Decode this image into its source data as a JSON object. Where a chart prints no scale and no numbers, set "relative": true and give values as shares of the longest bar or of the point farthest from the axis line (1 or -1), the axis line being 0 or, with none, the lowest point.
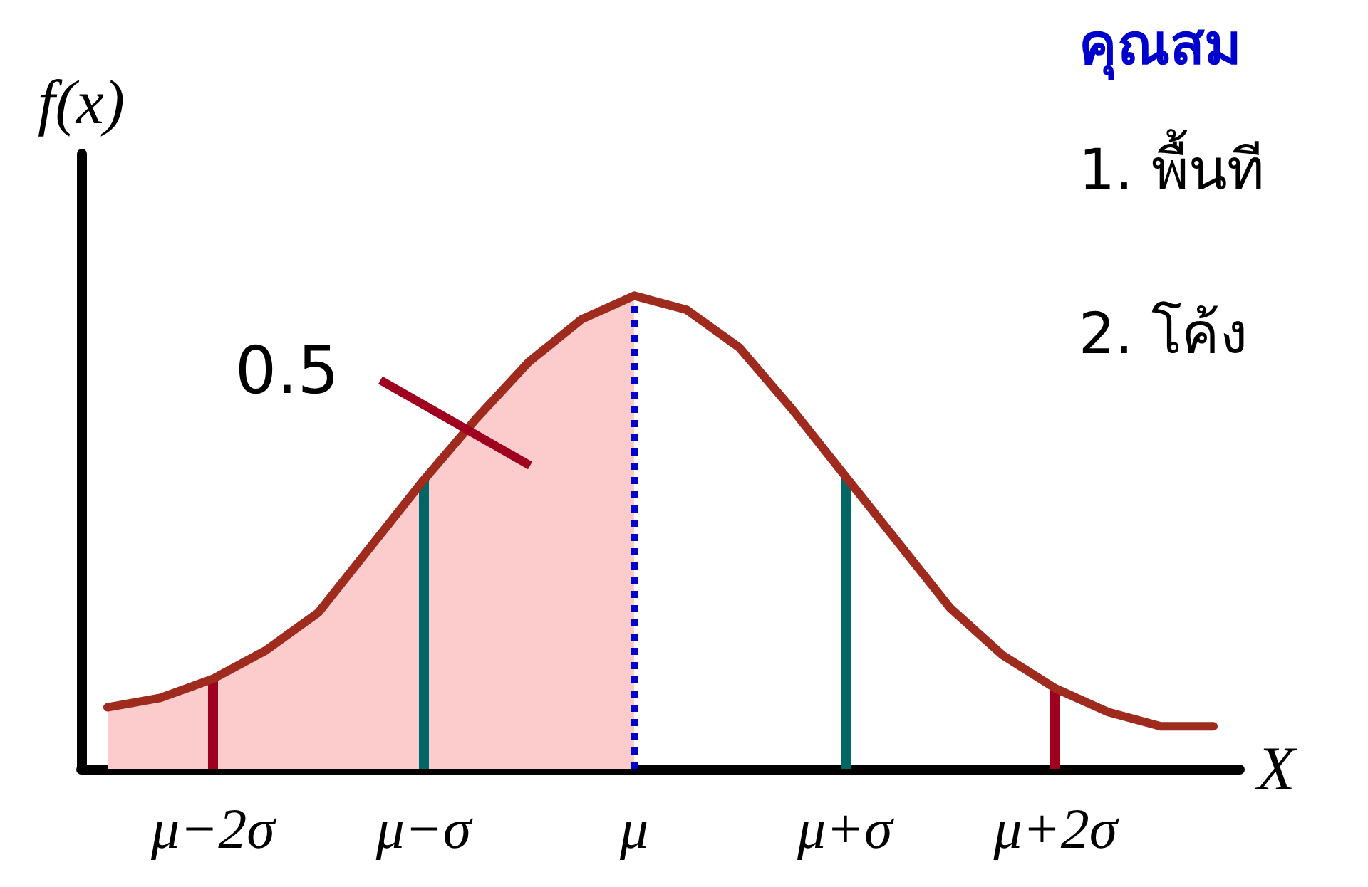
{
  "chart_data": {
    "type": "line",
    "relative": true,
    "ylabel": "f(x)",
    "xlabel": "X",
    "categories": [
      null,
      null,
      "μ−2σ",
      null,
      null,
      null,
      "μ−σ",
      null,
      null,
      null,
      "μ",
      null,
      null,
      null,
      "μ+σ",
      null,
      null,
      null,
      "μ+2σ",
      null,
      null,
      null
    ],
    "series": [
      {
        "type": "area",
        "color": "#fccccc",
        "values": [
          0.13,
          0.15,
          0.19,
          0.25,
          0.33,
          0.47,
          0.61,
          0.74,
          0.86,
          0.95,
          1,
          null,
          null,
          null,
          null,
          null,
          null,
          null,
          null,
          null,
          null,
          null
        ]
      },
      {
        "color": "#9e2b1e",
        "values": [
          0.13,
          0.15,
          0.19,
          0.25,
          0.33,
          0.47,
          0.61,
          0.74,
          0.86,
          0.95,
          1,
          0.97,
          0.89,
          0.76,
          0.62,
          0.48,
          0.34,
          0.24,
          0.17,
          0.12,
          0.09,
          0.09
        ]
      }
    ],
    "ref_lines": [
      {
        "axis": "x",
        "value": "μ−2σ",
        "color": "#a00020",
        "line_style": "solid"
      },
      {
        "axis": "x",
        "value": "μ−σ",
        "color": "#006666",
        "line_style": "solid"
      },
      {
        "axis": "x",
        "value": "μ",
        "color": "#0000cc",
        "line_style": "dotted"
      },
      {
        "axis": "x",
        "value": "μ+σ",
        "color": "#006666",
        "line_style": "solid"
      },
      {
        "axis": "x",
        "value": "μ+2σ",
        "color": "#a00020",
        "line_style": "solid"
      }
    ],
    "annotations": [
      "0.5",
      "คุณสม",
      "1. พื้นที",
      "2. โค้ง"
    ],
    "marker": "none",
    "grid": false
  }
}
